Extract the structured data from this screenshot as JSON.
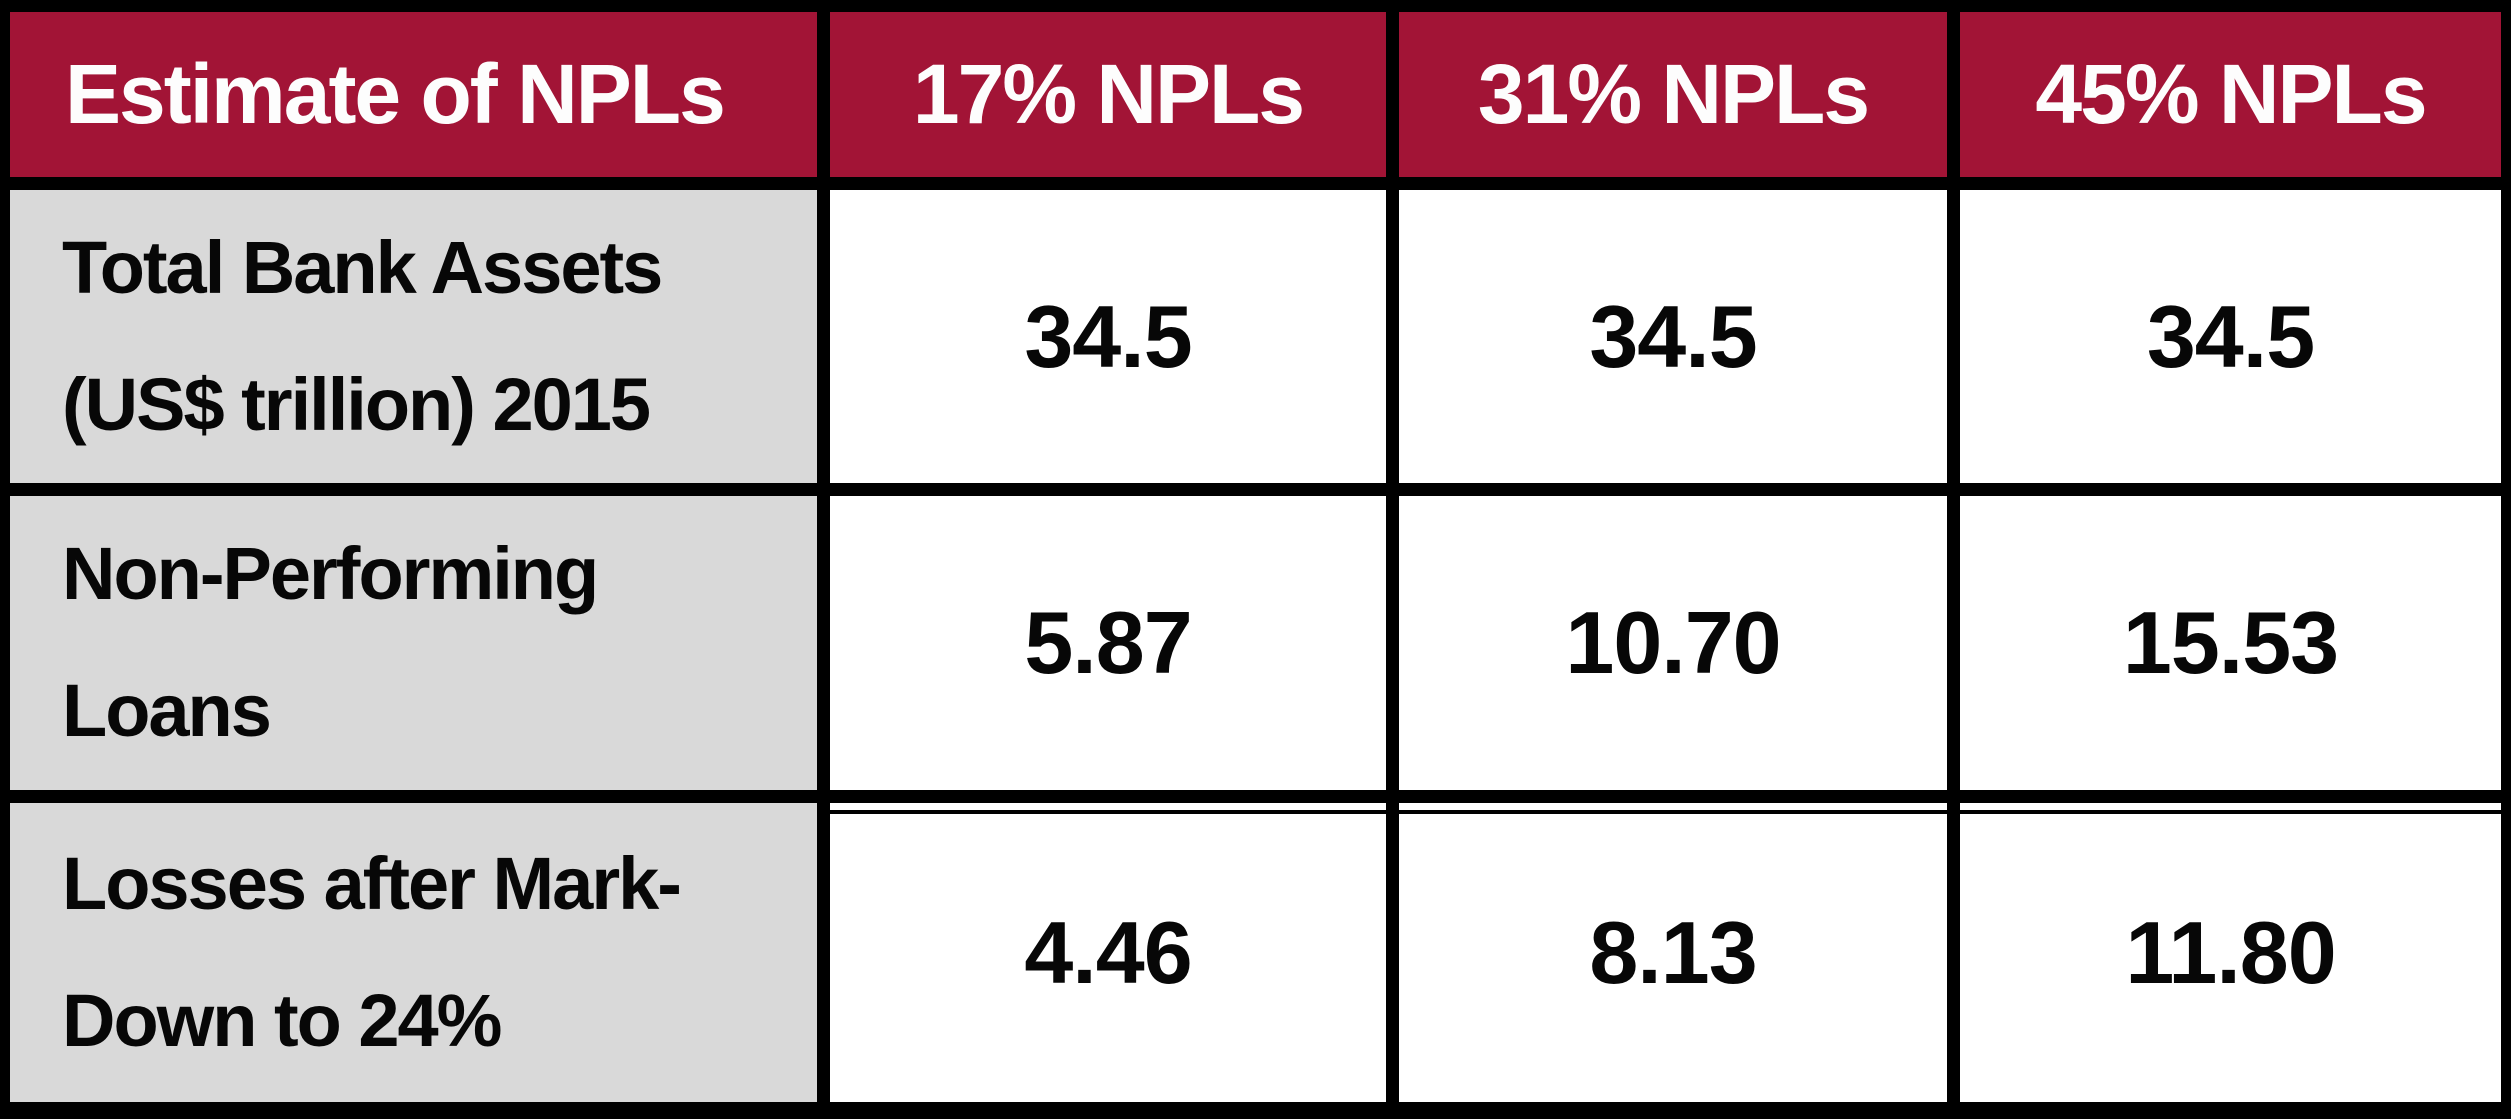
{
  "table": {
    "header": {
      "label": "Estimate of NPLs",
      "cols": [
        "17% NPLs",
        "31% NPLs",
        "45% NPLs"
      ]
    },
    "rows": [
      {
        "label": "Total Bank Assets\n(US$ trillion) 2015",
        "values": [
          "34.5",
          "34.5",
          "34.5"
        ]
      },
      {
        "label": "Non-Performing\nLoans",
        "values": [
          "5.87",
          "10.70",
          "15.53"
        ]
      },
      {
        "label": "Losses after Mark-\nDown to 24%",
        "values": [
          "4.46",
          "8.13",
          "11.80"
        ]
      }
    ]
  },
  "colors": {
    "header_bg": "#A21436",
    "header_text": "#FDFDFD",
    "label_bg": "#D9D9D9",
    "cell_bg": "#FFFFFF",
    "body_text": "#070707",
    "grid": "#000000"
  },
  "chart_data": {
    "type": "table",
    "title": "Estimate of NPLs",
    "columns": [
      "Estimate of NPLs",
      "17% NPLs",
      "31% NPLs",
      "45% NPLs"
    ],
    "rows": [
      [
        "Total Bank Assets (US$ trillion) 2015",
        34.5,
        34.5,
        34.5
      ],
      [
        "Non-Performing Loans",
        5.87,
        10.7,
        15.53
      ],
      [
        "Losses after Mark-Down to 24%",
        4.46,
        8.13,
        11.8
      ]
    ],
    "layout_hints": {
      "header_style": "maroon background, white bold text",
      "label_column_style": "light gray background, black bold text",
      "value_cells_style": "white background, black bold text, centered",
      "gridlines": "thick black borders between all cells"
    }
  }
}
